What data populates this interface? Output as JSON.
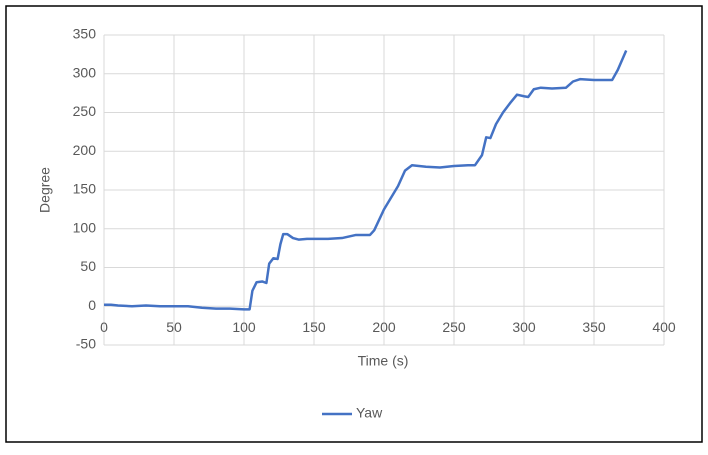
{
  "chart_data": {
    "type": "line",
    "x_label": "Time (s)",
    "y_label": "Degree",
    "x": [
      0,
      5,
      10,
      20,
      30,
      40,
      50,
      60,
      70,
      80,
      90,
      100,
      104,
      106,
      109,
      113,
      116,
      118,
      121,
      124,
      126,
      128,
      131,
      135,
      139,
      145,
      160,
      170,
      180,
      190,
      193,
      200,
      210,
      215,
      220,
      230,
      240,
      250,
      260,
      265,
      270,
      273,
      276,
      280,
      285,
      290,
      295,
      300,
      303,
      307,
      312,
      320,
      330,
      335,
      340,
      350,
      360,
      363,
      367,
      373
    ],
    "series": [
      {
        "name": "Yaw",
        "color": "#4472c4",
        "values": [
          2,
          2,
          1,
          0,
          1,
          0,
          0,
          0,
          -2,
          -3,
          -3,
          -4,
          -4,
          20,
          31,
          32,
          30,
          55,
          62,
          61,
          80,
          93,
          93,
          88,
          86,
          87,
          87,
          88,
          92,
          92,
          98,
          125,
          155,
          175,
          182,
          180,
          179,
          181,
          182,
          182,
          195,
          218,
          217,
          235,
          250,
          262,
          273,
          271,
          270,
          280,
          282,
          281,
          282,
          290,
          293,
          292,
          292,
          292,
          305,
          330
        ]
      }
    ],
    "xlim": [
      0,
      400
    ],
    "xticks": [
      0,
      50,
      100,
      150,
      200,
      250,
      300,
      350,
      400
    ],
    "ylim": [
      -50,
      350
    ],
    "yticks": [
      -50,
      0,
      50,
      100,
      150,
      200,
      250,
      300,
      350
    ],
    "grid": true,
    "legend": "bottom"
  }
}
